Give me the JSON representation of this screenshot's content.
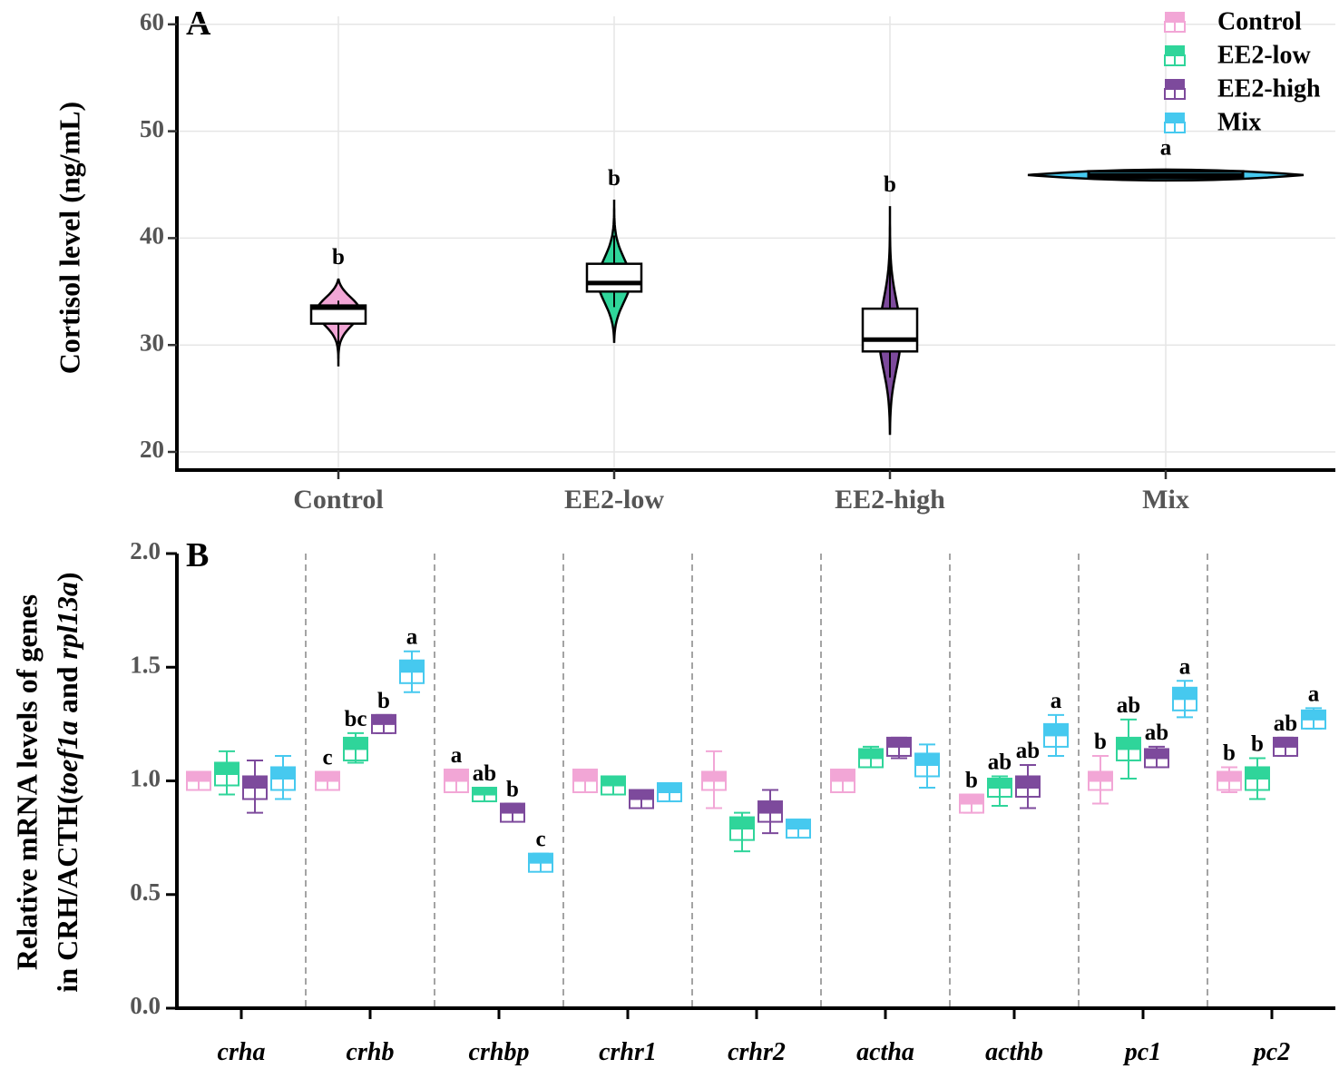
{
  "chart_data": [
    {
      "panel": "A",
      "type": "violin",
      "title": "",
      "xlabel": "",
      "ylabel": "Cortisol level (ng/mL)",
      "ylim": [
        18.5,
        61
      ],
      "yticks": [
        20,
        30,
        40,
        50,
        60
      ],
      "grid": true,
      "categories": [
        "Control",
        "EE2-low",
        "EE2-high",
        "Mix"
      ],
      "groups": [
        {
          "name": "Control",
          "color": "#f2a6d6",
          "min": 28.0,
          "max": 36.2,
          "q1": 32.0,
          "median": 33.5,
          "q3": 33.7,
          "letter": "b"
        },
        {
          "name": "EE2-low",
          "color": "#2fd59a",
          "min": 30.2,
          "max": 43.6,
          "q1": 35.0,
          "median": 35.8,
          "q3": 37.6,
          "letter": "b"
        },
        {
          "name": "EE2-high",
          "color": "#7d4a9c",
          "min": 21.6,
          "max": 43.0,
          "q1": 29.4,
          "median": 30.5,
          "q3": 33.4,
          "letter": "b"
        },
        {
          "name": "Mix",
          "color": "#46c9ef",
          "min": 45.2,
          "max": 46.6,
          "q1": 45.5,
          "median": 45.9,
          "q3": 46.1,
          "letter": "a"
        }
      ],
      "legend": {
        "position": "top-right",
        "entries": [
          {
            "label": "Control",
            "color": "#f2a6d6"
          },
          {
            "label": "EE2-low",
            "color": "#2fd59a"
          },
          {
            "label": "EE2-high",
            "color": "#7d4a9c"
          },
          {
            "label": "Mix",
            "color": "#46c9ef"
          }
        ]
      }
    },
    {
      "panel": "B",
      "type": "box",
      "title": "",
      "xlabel": "",
      "ylabel_line1": "Relative mRNA levels of genes",
      "ylabel_line2_prefix": "in CRH/ACTH(",
      "ylabel_line2_gene1": "toef1a",
      "ylabel_line2_mid": " and ",
      "ylabel_line2_gene2": "rpl13a",
      "ylabel_line2_suffix": ")",
      "ylim": [
        0,
        2.0
      ],
      "yticks": [
        "0.0",
        "0.5",
        "1.0",
        "1.5",
        "2.0"
      ],
      "categories": [
        "crha",
        "crhb",
        "crhbp",
        "crhr1",
        "crhr2",
        "actha",
        "acthb",
        "pc1",
        "pc2"
      ],
      "series": [
        {
          "name": "Control",
          "color": "#f2a6d6",
          "values": [
            [
              0.96,
              1.04,
              1.0,
              0.96,
              1.04
            ],
            [
              0.96,
              1.04,
              1.0,
              0.96,
              1.04
            ],
            [
              0.95,
              1.05,
              1.0,
              0.95,
              1.05
            ],
            [
              0.95,
              1.05,
              1.0,
              0.95,
              1.05
            ],
            [
              0.88,
              1.13,
              1.0,
              0.96,
              1.04
            ],
            [
              0.95,
              1.05,
              1.0,
              0.95,
              1.05
            ],
            [
              0.86,
              0.94,
              0.9,
              0.86,
              0.94
            ],
            [
              0.9,
              1.11,
              1.0,
              0.96,
              1.04
            ],
            [
              0.95,
              1.06,
              1.0,
              0.96,
              1.04
            ]
          ],
          "letters": [
            "",
            "c",
            "a",
            "",
            "",
            "",
            "b",
            "b",
            "b"
          ]
        },
        {
          "name": "EE2-low",
          "color": "#2fd59a",
          "values": [
            [
              0.94,
              1.13,
              1.03,
              0.98,
              1.08
            ],
            [
              1.08,
              1.21,
              1.14,
              1.09,
              1.19
            ],
            [
              0.92,
              0.97,
              0.94,
              0.91,
              0.97
            ],
            [
              0.94,
              1.02,
              0.98,
              0.94,
              1.02
            ],
            [
              0.69,
              0.86,
              0.79,
              0.74,
              0.84
            ],
            [
              1.06,
              1.15,
              1.1,
              1.06,
              1.14
            ],
            [
              0.89,
              1.02,
              0.97,
              0.93,
              1.01
            ],
            [
              1.01,
              1.27,
              1.14,
              1.09,
              1.19
            ],
            [
              0.92,
              1.1,
              1.01,
              0.96,
              1.06
            ]
          ],
          "letters": [
            "",
            "bc",
            "ab",
            "",
            "",
            "",
            "ab",
            "ab",
            "b"
          ]
        },
        {
          "name": "EE2-high",
          "color": "#7d4a9c",
          "values": [
            [
              0.86,
              1.09,
              0.97,
              0.92,
              1.02
            ],
            [
              1.21,
              1.29,
              1.25,
              1.21,
              1.29
            ],
            [
              0.83,
              0.9,
              0.86,
              0.82,
              0.9
            ],
            [
              0.89,
              0.95,
              0.92,
              0.88,
              0.96
            ],
            [
              0.77,
              0.96,
              0.86,
              0.82,
              0.91
            ],
            [
              1.1,
              1.19,
              1.15,
              1.11,
              1.19
            ],
            [
              0.88,
              1.07,
              0.97,
              0.93,
              1.02
            ],
            [
              1.06,
              1.15,
              1.1,
              1.06,
              1.14
            ],
            [
              1.11,
              1.19,
              1.15,
              1.11,
              1.19
            ]
          ],
          "letters": [
            "",
            "b",
            "b",
            "",
            "",
            "",
            "ab",
            "ab",
            "ab"
          ]
        },
        {
          "name": "Mix",
          "color": "#46c9ef",
          "values": [
            [
              0.92,
              1.11,
              1.01,
              0.96,
              1.06
            ],
            [
              1.39,
              1.57,
              1.48,
              1.43,
              1.53
            ],
            [
              0.61,
              0.68,
              0.64,
              0.6,
              0.68
            ],
            [
              0.91,
              0.99,
              0.95,
              0.91,
              0.99
            ],
            [
              0.76,
              0.83,
              0.79,
              0.75,
              0.83
            ],
            [
              0.97,
              1.16,
              1.07,
              1.02,
              1.12
            ],
            [
              1.11,
              1.29,
              1.2,
              1.15,
              1.25
            ],
            [
              1.28,
              1.44,
              1.36,
              1.31,
              1.41
            ],
            [
              1.23,
              1.32,
              1.27,
              1.23,
              1.31
            ]
          ],
          "letters": [
            "",
            "a",
            "c",
            "",
            "",
            "",
            "a",
            "a",
            "a"
          ]
        }
      ]
    }
  ]
}
